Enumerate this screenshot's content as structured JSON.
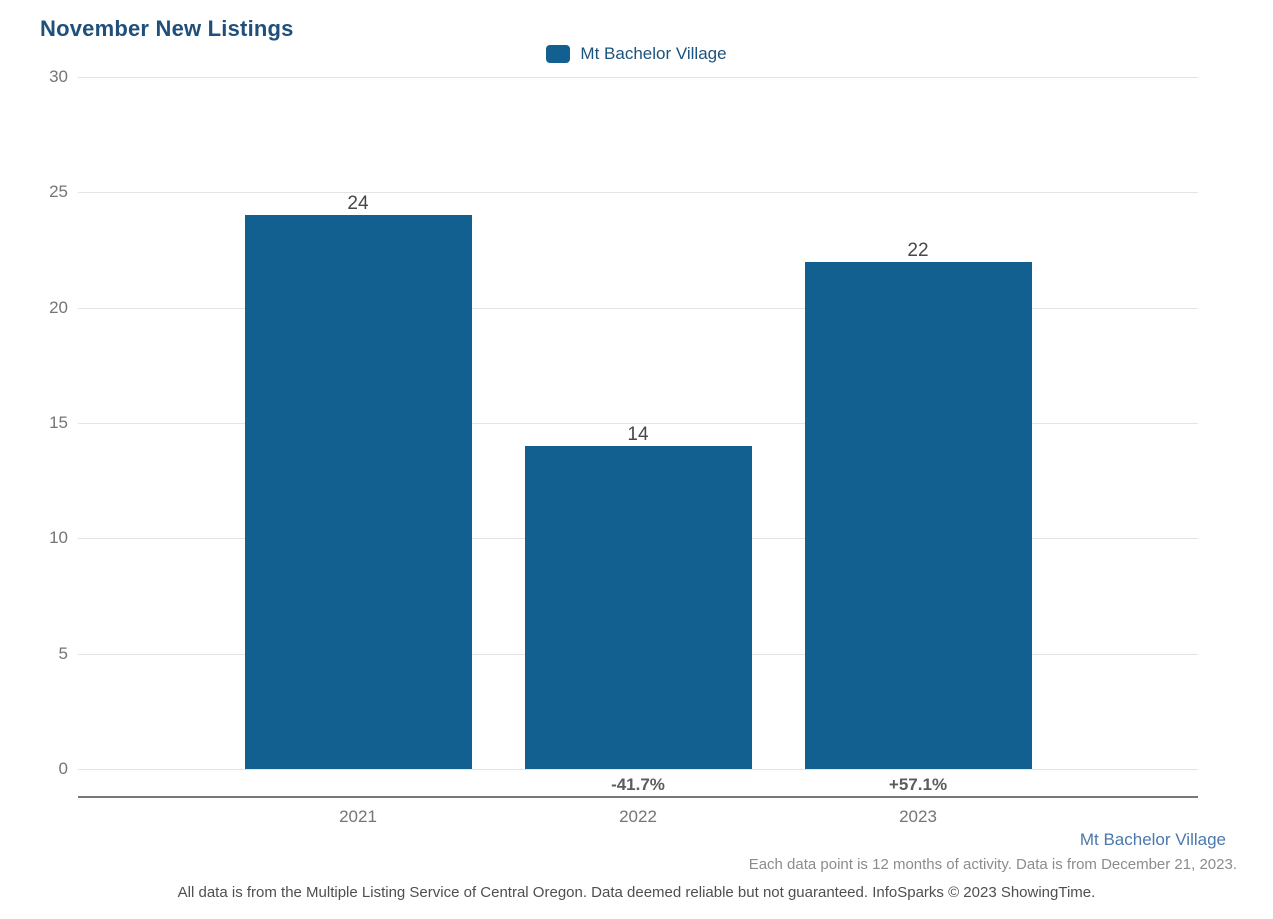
{
  "title": "November New Listings",
  "legend": {
    "label": "Mt Bachelor Village",
    "swatch_icon": "legend-swatch-square",
    "swatch_color": "#11608f"
  },
  "chart_data": {
    "type": "bar",
    "title": "November New Listings",
    "series_name": "Mt Bachelor Village",
    "categories": [
      "2021",
      "2022",
      "2023"
    ],
    "values": [
      24,
      14,
      22
    ],
    "value_labels": [
      "24",
      "14",
      "22"
    ],
    "pct_change_labels": [
      "",
      "-41.7%",
      "+57.1%"
    ],
    "xlabel": "",
    "ylabel": "",
    "ylim": [
      0,
      30
    ],
    "yticks": [
      0,
      5,
      10,
      15,
      20,
      25,
      30
    ],
    "grid": true,
    "legend_position": "top-center",
    "bar_color": "#11608f"
  },
  "footer": {
    "series_link": "Mt Bachelor Village",
    "note_line1": "Each data point is 12 months of activity. Data is from December 21, 2023.",
    "note_line2": "All data is from the Multiple Listing Service of Central Oregon. Data deemed reliable but not guaranteed. InfoSparks © 2023 ShowingTime."
  },
  "colors": {
    "title": "#20507a",
    "bar": "#11608f",
    "legend_text": "#1c537c",
    "gridline": "#e4e4e4",
    "axis_line": "#777777",
    "tick_text": "#757575",
    "value_label": "#484848",
    "pct_label": "#5c5c5c",
    "footer_link": "#4a79ad",
    "footer_note1": "#8c8c8c",
    "footer_note2": "#4f4f4f"
  }
}
